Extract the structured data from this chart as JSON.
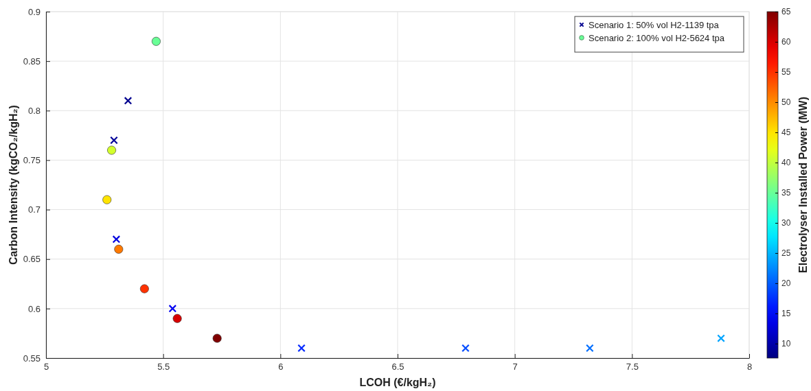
{
  "chart_data": {
    "type": "scatter",
    "xlabel": "LCOH (€/kgH₂)",
    "ylabel": "Carbon Intensity (kgCO₂/kgH₂)",
    "clabel": "Electrolyser Installed Power (MW)",
    "xlim": [
      5,
      8
    ],
    "xticks": [
      5,
      5.5,
      6,
      6.5,
      7,
      7.5,
      8
    ],
    "ylim": [
      0.55,
      0.9
    ],
    "yticks": [
      0.55,
      0.6,
      0.65,
      0.7,
      0.75,
      0.8,
      0.85,
      0.9
    ],
    "clim": [
      7.6,
      65
    ],
    "cticks": [
      10,
      15,
      20,
      25,
      30,
      35,
      40,
      45,
      50,
      55,
      60,
      65
    ],
    "grid": true,
    "legend": "top right",
    "series": [
      {
        "name": "Scenario 1: 50% vol H2-1139 tpa",
        "marker": "cross",
        "x": [
          5.35,
          5.29,
          5.3,
          5.54,
          6.09,
          6.79,
          7.32,
          7.88
        ],
        "values": [
          0.81,
          0.77,
          0.67,
          0.6,
          0.56,
          0.56,
          0.56,
          0.57
        ],
        "colors": [
          "#00008f",
          "#000098",
          "#0000df",
          "#0000f1",
          "#0028ff",
          "#004bff",
          "#006eff",
          "#00a4ff"
        ]
      },
      {
        "name": "Scenario 2: 100% vol H2-5624 tpa",
        "marker": "circle",
        "x": [
          5.47,
          5.28,
          5.26,
          5.31,
          5.42,
          5.56,
          5.73
        ],
        "values": [
          0.87,
          0.76,
          0.71,
          0.66,
          0.62,
          0.59,
          0.57
        ],
        "colors": [
          "#69ff96",
          "#d3ff2c",
          "#ffe400",
          "#ff7900",
          "#ff3200",
          "#d80000",
          "#800000"
        ]
      }
    ]
  }
}
